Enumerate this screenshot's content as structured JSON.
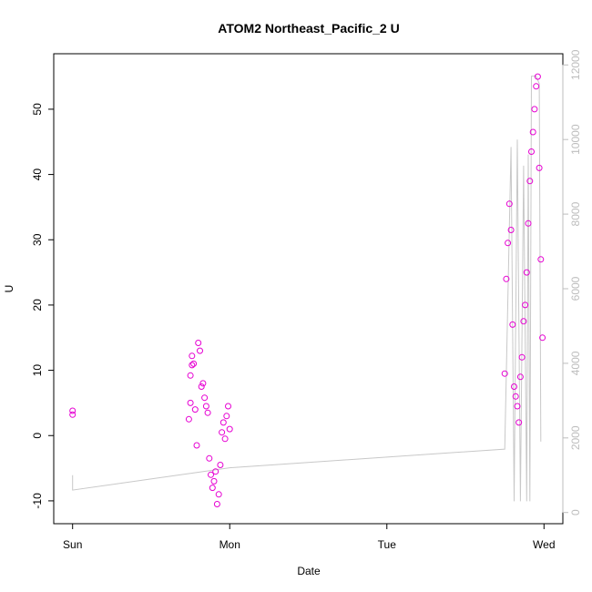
{
  "chart_data": {
    "type": "scatter",
    "title": "ATOM2 Northeast_Pacific_2 U",
    "xlabel": "Date",
    "ylabel": "U",
    "x_unit": "days since Sunday 00:00",
    "xlim": [
      -0.12,
      3.12
    ],
    "x_ticks": [
      {
        "value": 0,
        "label": "Sun"
      },
      {
        "value": 1,
        "label": "Mon"
      },
      {
        "value": 2,
        "label": "Tue"
      },
      {
        "value": 3,
        "label": "Wed"
      }
    ],
    "ylim": [
      -13.5,
      58.5
    ],
    "y_ticks": [
      -10,
      0,
      10,
      20,
      30,
      40,
      50
    ],
    "y2lim": [
      -300,
      12300
    ],
    "y2_ticks": [
      0,
      2000,
      4000,
      6000,
      8000,
      10000,
      12000
    ],
    "grid": false,
    "colors": {
      "points": "#e600d2",
      "line": "#c8c8c8",
      "right_axis": "#bdbdbd",
      "frame": "#000000"
    },
    "series": [
      {
        "kind": "points",
        "axis": "left",
        "values": [
          [
            0.0,
            3.8
          ],
          [
            0.0,
            3.2
          ],
          [
            0.74,
            2.5
          ],
          [
            0.75,
            5.0
          ],
          [
            0.75,
            9.2
          ],
          [
            0.76,
            10.8
          ],
          [
            0.76,
            12.2
          ],
          [
            0.77,
            11.0
          ],
          [
            0.78,
            4.0
          ],
          [
            0.79,
            -1.5
          ],
          [
            0.8,
            14.2
          ],
          [
            0.81,
            13.0
          ],
          [
            0.82,
            7.5
          ],
          [
            0.83,
            8.0
          ],
          [
            0.84,
            5.8
          ],
          [
            0.85,
            4.5
          ],
          [
            0.86,
            3.5
          ],
          [
            0.87,
            -3.5
          ],
          [
            0.88,
            -6.0
          ],
          [
            0.89,
            -8.0
          ],
          [
            0.9,
            -7.0
          ],
          [
            0.91,
            -5.5
          ],
          [
            0.92,
            -10.5
          ],
          [
            0.93,
            -9.0
          ],
          [
            0.94,
            -4.5
          ],
          [
            0.95,
            0.5
          ],
          [
            0.96,
            2.0
          ],
          [
            0.97,
            -0.5
          ],
          [
            0.98,
            3.0
          ],
          [
            0.99,
            4.5
          ],
          [
            1.0,
            1.0
          ],
          [
            2.75,
            9.5
          ],
          [
            2.76,
            24.0
          ],
          [
            2.77,
            29.5
          ],
          [
            2.78,
            35.5
          ],
          [
            2.79,
            31.5
          ],
          [
            2.8,
            17.0
          ],
          [
            2.81,
            7.5
          ],
          [
            2.82,
            6.0
          ],
          [
            2.83,
            4.5
          ],
          [
            2.84,
            2.0
          ],
          [
            2.85,
            9.0
          ],
          [
            2.86,
            12.0
          ],
          [
            2.87,
            17.5
          ],
          [
            2.88,
            20.0
          ],
          [
            2.89,
            25.0
          ],
          [
            2.9,
            32.5
          ],
          [
            2.91,
            39.0
          ],
          [
            2.92,
            43.5
          ],
          [
            2.93,
            46.5
          ],
          [
            2.94,
            50.0
          ],
          [
            2.95,
            53.5
          ],
          [
            2.96,
            55.0
          ],
          [
            2.97,
            41.0
          ],
          [
            2.98,
            27.0
          ],
          [
            2.99,
            15.0
          ]
        ]
      },
      {
        "kind": "line",
        "axis": "right",
        "values": [
          [
            0.0,
            1000
          ],
          [
            0.0,
            600
          ],
          [
            1.0,
            1200
          ],
          [
            2.75,
            1700
          ],
          [
            2.79,
            9800
          ],
          [
            2.81,
            300
          ],
          [
            2.83,
            10000
          ],
          [
            2.85,
            300
          ],
          [
            2.87,
            9300
          ],
          [
            2.89,
            300
          ],
          [
            2.9,
            9600
          ],
          [
            2.91,
            300
          ],
          [
            2.92,
            11700
          ],
          [
            2.95,
            11700
          ],
          [
            2.97,
            11500
          ],
          [
            2.98,
            1900
          ]
        ]
      }
    ]
  }
}
